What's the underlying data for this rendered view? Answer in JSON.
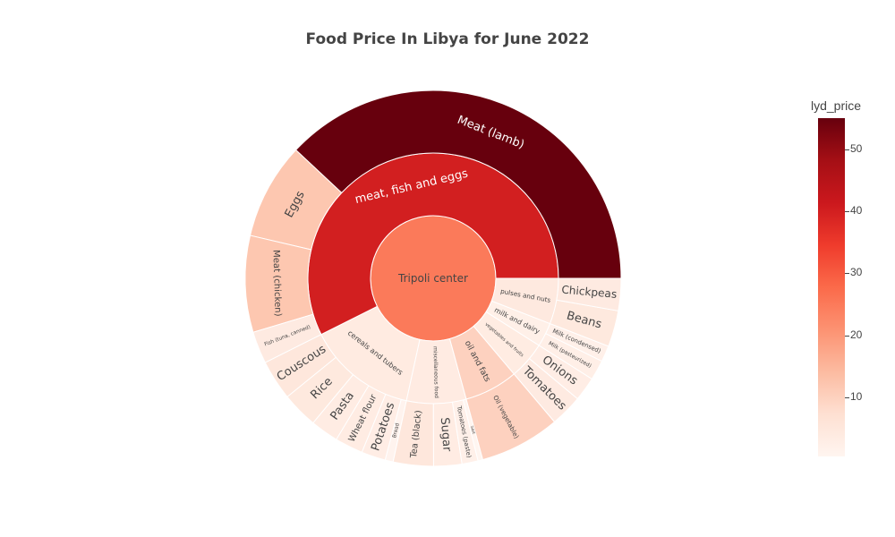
{
  "title": "Food Price In Libya for June 2022",
  "chart_data": {
    "type": "sunburst",
    "title": "Food Price In Libya for June 2022",
    "root": "Tripoli center",
    "color_metric": "lyd_price",
    "color_range": [
      0.5,
      55
    ],
    "colorbar": {
      "title": "lyd_price",
      "ticks": [
        10,
        20,
        30,
        40,
        50
      ]
    },
    "categories": [
      {
        "name": "meat, fish and eggs",
        "items": [
          {
            "name": "Meat (lamb)",
            "value": 55
          },
          {
            "name": "Eggs",
            "value": 12
          },
          {
            "name": "Meat (chicken)",
            "value": 12
          },
          {
            "name": "Fish (tuna, canned)",
            "value": 4
          }
        ]
      },
      {
        "name": "cereals and tubers",
        "items": [
          {
            "name": "Couscous",
            "value": 5
          },
          {
            "name": "Rice",
            "value": 4.5
          },
          {
            "name": "Pasta",
            "value": 3.5
          },
          {
            "name": "Wheat flour",
            "value": 3.5
          },
          {
            "name": "Potatoes",
            "value": 3
          },
          {
            "name": "Bread",
            "value": 1
          }
        ]
      },
      {
        "name": "miscellaneous food",
        "items": [
          {
            "name": "Tea (black)",
            "value": 5
          },
          {
            "name": "Sugar",
            "value": 3.5
          },
          {
            "name": "Tomatoes (paste)",
            "value": 2
          },
          {
            "name": "Salt",
            "value": 0.6
          }
        ]
      },
      {
        "name": "oil and fats",
        "items": [
          {
            "name": "Oil (vegetable)",
            "value": 10
          }
        ]
      },
      {
        "name": "vegetables and fruits",
        "items": [
          {
            "name": "Tomatoes",
            "value": 4
          },
          {
            "name": "Onions",
            "value": 3
          }
        ]
      },
      {
        "name": "milk and dairy",
        "items": [
          {
            "name": "Milk (pasteurized)",
            "value": 2.5
          },
          {
            "name": "Milk (condensed)",
            "value": 2
          }
        ]
      },
      {
        "name": "pulses and nuts",
        "items": [
          {
            "name": "Beans",
            "value": 4.5
          },
          {
            "name": "Chickpeas",
            "value": 4
          }
        ]
      }
    ]
  }
}
